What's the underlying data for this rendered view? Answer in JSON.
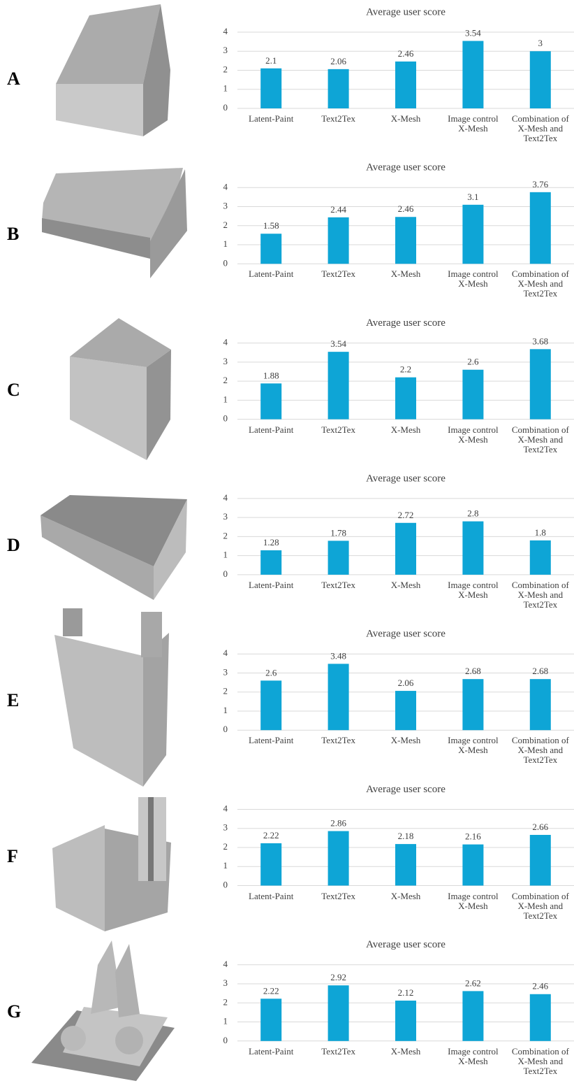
{
  "row_labels": [
    "A",
    "B",
    "C",
    "D",
    "E",
    "F",
    "G"
  ],
  "chart_data": [
    {
      "type": "bar",
      "title": "Average user score",
      "categories": [
        "Latent-Paint",
        "Text2Tex",
        "X-Mesh",
        "Image control X-Mesh",
        "Combination of X-Mesh and Text2Tex"
      ],
      "values": [
        2.1,
        2.06,
        2.46,
        3.54,
        3
      ],
      "color": "#0ea5d6",
      "ylim": [
        0,
        4
      ],
      "yticks": [
        0,
        1,
        2,
        3,
        4
      ],
      "grid": true
    },
    {
      "type": "bar",
      "title": "Average user score",
      "categories": [
        "Latent-Paint",
        "Text2Tex",
        "X-Mesh",
        "Image control X-Mesh",
        "Combination of X-Mesh and Text2Tex"
      ],
      "values": [
        1.58,
        2.44,
        2.46,
        3.1,
        3.76
      ],
      "color": "#0ea5d6",
      "ylim": [
        0,
        4
      ],
      "yticks": [
        0,
        1,
        2,
        3,
        4
      ],
      "grid": true
    },
    {
      "type": "bar",
      "title": "Average user score",
      "categories": [
        "Latent-Paint",
        "Text2Tex",
        "X-Mesh",
        "Image control X-Mesh",
        "Combination of X-Mesh and Text2Tex"
      ],
      "values": [
        1.88,
        3.54,
        2.2,
        2.6,
        3.68
      ],
      "color": "#0ea5d6",
      "ylim": [
        0,
        4
      ],
      "yticks": [
        0,
        1,
        2,
        3,
        4
      ],
      "grid": true
    },
    {
      "type": "bar",
      "title": "Average user score",
      "categories": [
        "Latent-Paint",
        "Text2Tex",
        "X-Mesh",
        "Image control X-Mesh",
        "Combination of X-Mesh and Text2Tex"
      ],
      "values": [
        1.28,
        1.78,
        2.72,
        2.8,
        1.8
      ],
      "color": "#0ea5d6",
      "ylim": [
        0,
        4
      ],
      "yticks": [
        0,
        1,
        2,
        3,
        4
      ],
      "grid": true
    },
    {
      "type": "bar",
      "title": "Average user score",
      "categories": [
        "Latent-Paint",
        "Text2Tex",
        "X-Mesh",
        "Image control X-Mesh",
        "Combination of X-Mesh and Text2Tex"
      ],
      "values": [
        2.6,
        3.48,
        2.06,
        2.68,
        2.68
      ],
      "color": "#0ea5d6",
      "ylim": [
        0,
        4
      ],
      "yticks": [
        0,
        1,
        2,
        3,
        4
      ],
      "grid": true
    },
    {
      "type": "bar",
      "title": "Average user score",
      "categories": [
        "Latent-Paint",
        "Text2Tex",
        "X-Mesh",
        "Image control X-Mesh",
        "Combination of X-Mesh and Text2Tex"
      ],
      "values": [
        2.22,
        2.86,
        2.18,
        2.16,
        2.66
      ],
      "color": "#0ea5d6",
      "ylim": [
        0,
        4
      ],
      "yticks": [
        0,
        1,
        2,
        3,
        4
      ],
      "grid": true
    },
    {
      "type": "bar",
      "title": "Average user score",
      "categories": [
        "Latent-Paint",
        "Text2Tex",
        "X-Mesh",
        "Image control X-Mesh",
        "Combination of X-Mesh and Text2Tex"
      ],
      "values": [
        2.22,
        2.92,
        2.12,
        2.62,
        2.46
      ],
      "color": "#0ea5d6",
      "ylim": [
        0,
        4
      ],
      "yticks": [
        0,
        1,
        2,
        3,
        4
      ],
      "grid": true
    }
  ]
}
